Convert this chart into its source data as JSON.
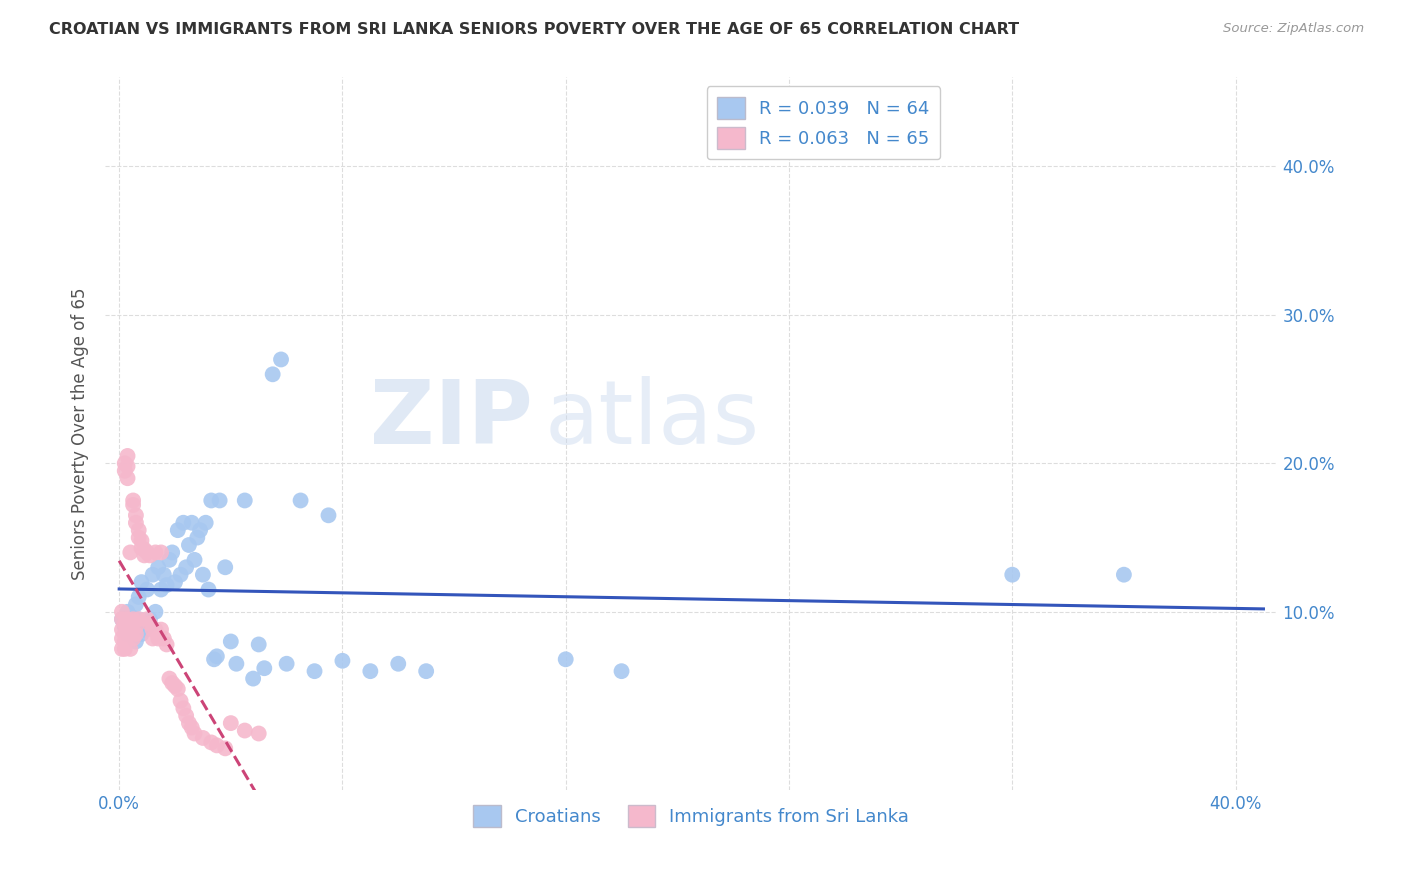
{
  "title": "CROATIAN VS IMMIGRANTS FROM SRI LANKA SENIORS POVERTY OVER THE AGE OF 65 CORRELATION CHART",
  "source": "Source: ZipAtlas.com",
  "ylabel": "Seniors Poverty Over the Age of 65",
  "xlim": [
    -0.005,
    0.415
  ],
  "ylim": [
    -0.02,
    0.46
  ],
  "xtick_vals": [
    0.0,
    0.08,
    0.16,
    0.24,
    0.32,
    0.4
  ],
  "ytick_vals": [
    0.1,
    0.2,
    0.3,
    0.4
  ],
  "ytick_labels_right": [
    "10.0%",
    "20.0%",
    "30.0%",
    "40.0%"
  ],
  "xtick_labels": [
    "0.0%",
    "",
    "",
    "",
    "",
    "40.0%"
  ],
  "legend_croatians_R": "R = 0.039",
  "legend_croatians_N": "N = 64",
  "legend_srilanka_R": "R = 0.063",
  "legend_srilanka_N": "N = 65",
  "croatian_color": "#a8c8f0",
  "srilanka_color": "#f5b8cc",
  "trendline_croatian_color": "#3355bb",
  "trendline_srilanka_color": "#cc4477",
  "legend_text_color": "#4488cc",
  "title_color": "#333333",
  "background_color": "#ffffff",
  "grid_color": "#dddddd",
  "croatians_x": [
    0.001,
    0.002,
    0.003,
    0.003,
    0.004,
    0.004,
    0.005,
    0.005,
    0.006,
    0.006,
    0.007,
    0.007,
    0.008,
    0.008,
    0.009,
    0.01,
    0.01,
    0.011,
    0.012,
    0.013,
    0.014,
    0.015,
    0.016,
    0.017,
    0.018,
    0.019,
    0.02,
    0.021,
    0.022,
    0.023,
    0.024,
    0.025,
    0.026,
    0.027,
    0.028,
    0.029,
    0.03,
    0.031,
    0.032,
    0.033,
    0.034,
    0.035,
    0.036,
    0.038,
    0.04,
    0.042,
    0.045,
    0.048,
    0.05,
    0.052,
    0.055,
    0.058,
    0.06,
    0.065,
    0.07,
    0.075,
    0.08,
    0.09,
    0.1,
    0.11,
    0.16,
    0.18,
    0.32,
    0.36
  ],
  "croatians_y": [
    0.095,
    0.09,
    0.085,
    0.1,
    0.088,
    0.092,
    0.083,
    0.096,
    0.08,
    0.105,
    0.11,
    0.095,
    0.12,
    0.085,
    0.088,
    0.115,
    0.09,
    0.095,
    0.125,
    0.1,
    0.13,
    0.115,
    0.125,
    0.118,
    0.135,
    0.14,
    0.12,
    0.155,
    0.125,
    0.16,
    0.13,
    0.145,
    0.16,
    0.135,
    0.15,
    0.155,
    0.125,
    0.16,
    0.115,
    0.175,
    0.068,
    0.07,
    0.175,
    0.13,
    0.08,
    0.065,
    0.175,
    0.055,
    0.078,
    0.062,
    0.26,
    0.27,
    0.065,
    0.175,
    0.06,
    0.165,
    0.067,
    0.06,
    0.065,
    0.06,
    0.068,
    0.06,
    0.125,
    0.125
  ],
  "srilanka_x": [
    0.001,
    0.001,
    0.001,
    0.001,
    0.001,
    0.002,
    0.002,
    0.002,
    0.002,
    0.002,
    0.002,
    0.003,
    0.003,
    0.003,
    0.003,
    0.003,
    0.004,
    0.004,
    0.004,
    0.004,
    0.005,
    0.005,
    0.005,
    0.005,
    0.006,
    0.006,
    0.006,
    0.006,
    0.007,
    0.007,
    0.007,
    0.008,
    0.008,
    0.009,
    0.009,
    0.01,
    0.01,
    0.011,
    0.011,
    0.012,
    0.012,
    0.013,
    0.013,
    0.014,
    0.015,
    0.015,
    0.016,
    0.017,
    0.018,
    0.019,
    0.02,
    0.021,
    0.022,
    0.023,
    0.024,
    0.025,
    0.026,
    0.027,
    0.03,
    0.033,
    0.035,
    0.038,
    0.04,
    0.045,
    0.05
  ],
  "srilanka_y": [
    0.095,
    0.1,
    0.088,
    0.082,
    0.075,
    0.2,
    0.195,
    0.092,
    0.085,
    0.08,
    0.075,
    0.205,
    0.198,
    0.19,
    0.095,
    0.088,
    0.092,
    0.14,
    0.085,
    0.075,
    0.175,
    0.172,
    0.095,
    0.082,
    0.165,
    0.16,
    0.09,
    0.085,
    0.155,
    0.15,
    0.095,
    0.148,
    0.143,
    0.142,
    0.138,
    0.14,
    0.095,
    0.138,
    0.092,
    0.088,
    0.082,
    0.14,
    0.088,
    0.082,
    0.14,
    0.088,
    0.082,
    0.078,
    0.055,
    0.052,
    0.05,
    0.048,
    0.04,
    0.035,
    0.03,
    0.025,
    0.022,
    0.018,
    0.015,
    0.012,
    0.01,
    0.008,
    0.025,
    0.02,
    0.018
  ]
}
